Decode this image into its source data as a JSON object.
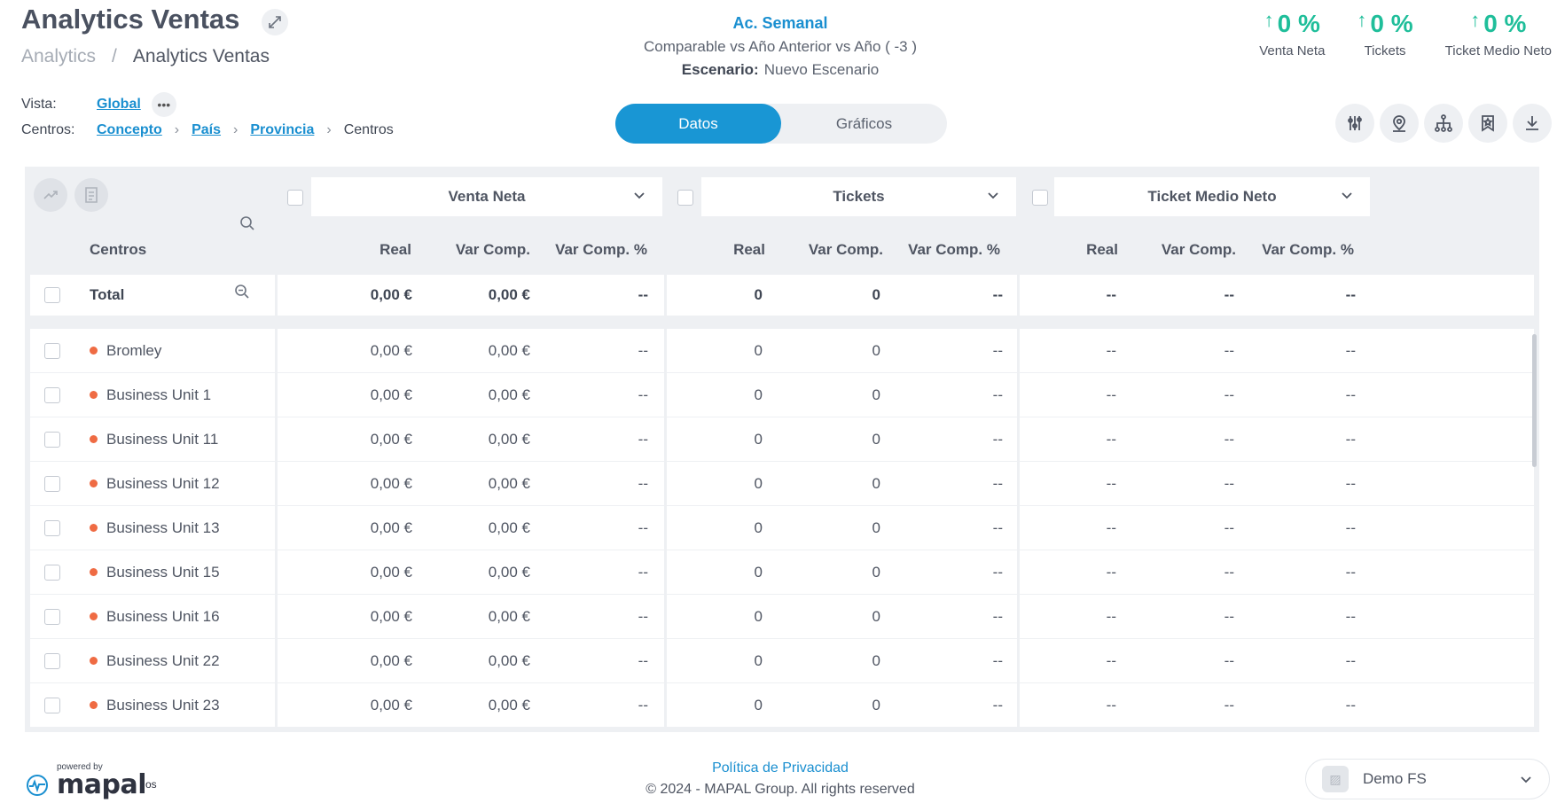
{
  "header": {
    "title": "Analytics Ventas",
    "breadcrumb_root": "Analytics",
    "breadcrumb_sep": "/",
    "breadcrumb_current": "Analytics Ventas"
  },
  "period": {
    "label": "Ac. Semanal",
    "comparable": "Comparable vs Año Anterior vs Año ( -3 )",
    "scenario_label": "Escenario:",
    "scenario_value": "Nuevo Escenario"
  },
  "kpis": [
    {
      "value": "0 %",
      "label": "Venta Neta"
    },
    {
      "value": "0 %",
      "label": "Tickets"
    },
    {
      "value": "0 %",
      "label": "Ticket Medio Neto"
    }
  ],
  "vista": {
    "label": "Vista:",
    "value": "Global"
  },
  "centros": {
    "label": "Centros:",
    "levels": [
      "Concepto",
      "País",
      "Provincia"
    ],
    "current": "Centros"
  },
  "toggle": {
    "active": "Datos",
    "inactive": "Gráficos"
  },
  "metrics": [
    "Venta Neta",
    "Tickets",
    "Ticket Medio Neto"
  ],
  "columns": {
    "name": "Centros",
    "real": "Real",
    "var": "Var Comp.",
    "varpct": "Var Comp. %"
  },
  "total": {
    "label": "Total",
    "venta": [
      "0,00 €",
      "0,00 €",
      "--"
    ],
    "tickets": [
      "0",
      "0",
      "--"
    ],
    "medio": [
      "--",
      "--",
      "--"
    ]
  },
  "rows": [
    {
      "name": "Bromley",
      "venta": [
        "0,00 €",
        "0,00 €",
        "--"
      ],
      "tickets": [
        "0",
        "0",
        "--"
      ],
      "medio": [
        "--",
        "--",
        "--"
      ]
    },
    {
      "name": "Business Unit 1",
      "venta": [
        "0,00 €",
        "0,00 €",
        "--"
      ],
      "tickets": [
        "0",
        "0",
        "--"
      ],
      "medio": [
        "--",
        "--",
        "--"
      ]
    },
    {
      "name": "Business Unit 11",
      "venta": [
        "0,00 €",
        "0,00 €",
        "--"
      ],
      "tickets": [
        "0",
        "0",
        "--"
      ],
      "medio": [
        "--",
        "--",
        "--"
      ]
    },
    {
      "name": "Business Unit 12",
      "venta": [
        "0,00 €",
        "0,00 €",
        "--"
      ],
      "tickets": [
        "0",
        "0",
        "--"
      ],
      "medio": [
        "--",
        "--",
        "--"
      ]
    },
    {
      "name": "Business Unit 13",
      "venta": [
        "0,00 €",
        "0,00 €",
        "--"
      ],
      "tickets": [
        "0",
        "0",
        "--"
      ],
      "medio": [
        "--",
        "--",
        "--"
      ]
    },
    {
      "name": "Business Unit 15",
      "venta": [
        "0,00 €",
        "0,00 €",
        "--"
      ],
      "tickets": [
        "0",
        "0",
        "--"
      ],
      "medio": [
        "--",
        "--",
        "--"
      ]
    },
    {
      "name": "Business Unit 16",
      "venta": [
        "0,00 €",
        "0,00 €",
        "--"
      ],
      "tickets": [
        "0",
        "0",
        "--"
      ],
      "medio": [
        "--",
        "--",
        "--"
      ]
    },
    {
      "name": "Business Unit 22",
      "venta": [
        "0,00 €",
        "0,00 €",
        "--"
      ],
      "tickets": [
        "0",
        "0",
        "--"
      ],
      "medio": [
        "--",
        "--",
        "--"
      ]
    },
    {
      "name": "Business Unit 23",
      "venta": [
        "0,00 €",
        "0,00 €",
        "--"
      ],
      "tickets": [
        "0",
        "0",
        "--"
      ],
      "medio": [
        "--",
        "--",
        "--"
      ]
    }
  ],
  "footer": {
    "powered_by": "powered by",
    "brand": "mapal",
    "brand_suffix": "os",
    "privacy": "Política de Privacidad",
    "copyright": "© 2024 - MAPAL Group. All rights reserved",
    "account": "Demo FS"
  },
  "colors": {
    "accent": "#1996d4",
    "kpi_positive": "#1fbe9a",
    "status_dot": "#ef6b43"
  },
  "icons": [
    "expand-icon",
    "more-icon",
    "filters-icon",
    "location-icon",
    "hierarchy-icon",
    "bookmark-star-icon",
    "download-icon",
    "trend-icon",
    "report-icon",
    "search-icon",
    "zoom-out-icon",
    "chevron-down-icon"
  ]
}
